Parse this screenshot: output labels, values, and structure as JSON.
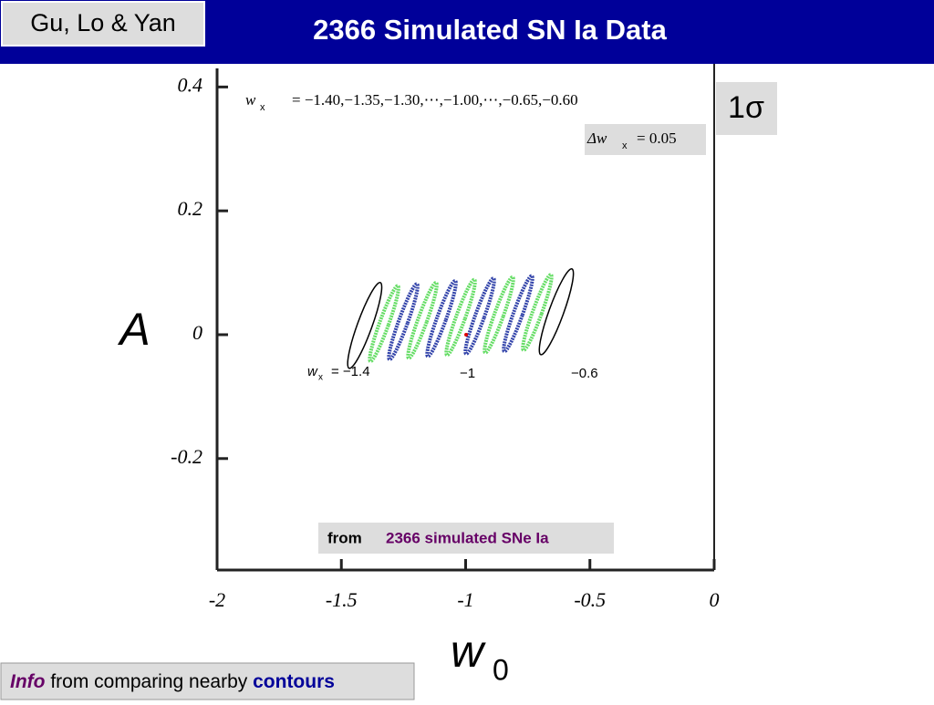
{
  "header": {
    "authors": "Gu, Lo & Yan",
    "title": "2366 Simulated SN Ia Data"
  },
  "footer": {
    "info": "Info",
    "text": "from comparing nearby",
    "contours": "contours"
  },
  "chart_data": {
    "type": "contour",
    "x_label": "w",
    "x_label_sub": "0",
    "y_label": "A",
    "xlim": [
      -2,
      0
    ],
    "ylim": [
      -0.38,
      0.43
    ],
    "xticks": [
      -2,
      -1.5,
      -1,
      -0.5,
      0
    ],
    "yticks": [
      0.4,
      0.2,
      0,
      -0.2
    ],
    "annotations": {
      "range_w": "w",
      "range_sub": "x",
      "range_text": "= −1.40,−1.35,−1.30,⋯,−1.00,⋯,−0.65,−0.60",
      "delta_w": "Δw",
      "delta_sub": "x",
      "delta_text": "= 0.05",
      "sigma": "1σ",
      "left_w": "w",
      "left_sub": "x",
      "left_text": "= −1.4",
      "mid": "−1",
      "right": "−0.6",
      "source_from": "from",
      "source_text": "2366 simulated SNe Ia"
    },
    "contours": {
      "x": [
        -1.406,
        -1.328,
        -1.251,
        -1.174,
        -1.097,
        -1.02,
        -0.943,
        -0.866,
        -0.789,
        -0.712,
        -0.635
      ],
      "y": [
        0.015,
        0.018,
        0.021,
        0.023,
        0.026,
        0.028,
        0.03,
        0.032,
        0.034,
        0.036,
        0.037
      ],
      "colors": [
        "#000000",
        "#66dd66",
        "#3344aa",
        "#66dd66",
        "#3344aa",
        "#66dd66",
        "#3344aa",
        "#66dd66",
        "#3344aa",
        "#66dd66",
        "#000000"
      ]
    },
    "fiducial": {
      "x": -0.998,
      "y": 0,
      "color": "#dd0000"
    }
  }
}
